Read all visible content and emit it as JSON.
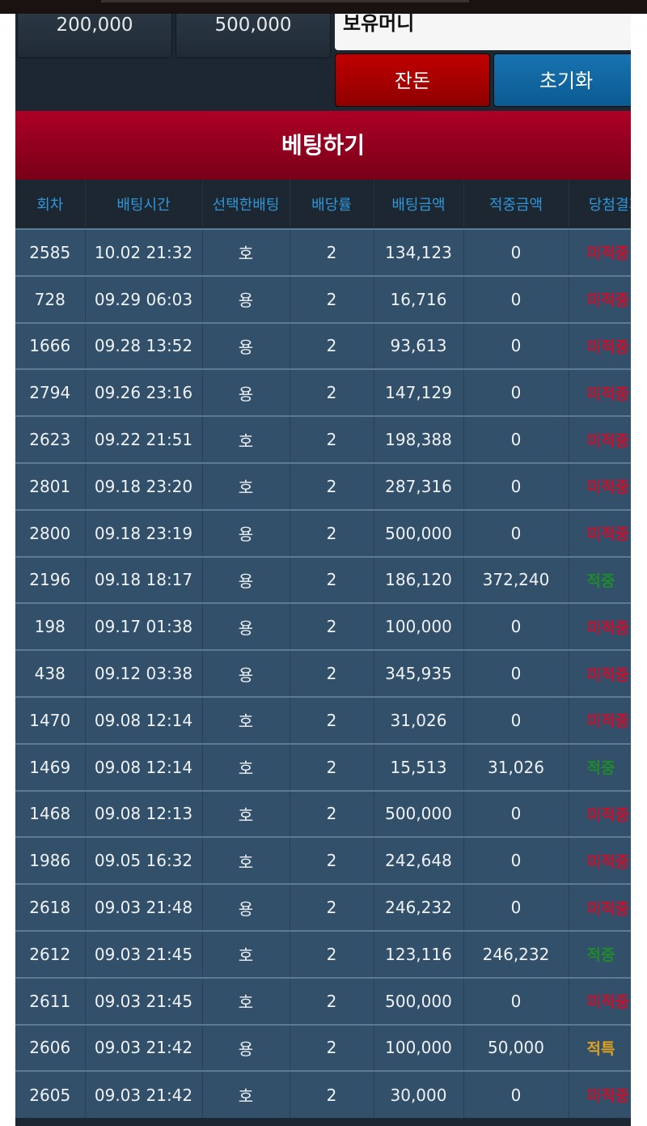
{
  "chips": [
    "200,000",
    "500,000"
  ],
  "money_label": "보유머니",
  "buttons": {
    "balance": "잔돈",
    "reset": "초기화"
  },
  "bet_button": "베팅하기",
  "colors": {
    "win": "#1e8a2a",
    "lose": "#c8102e",
    "special": "#e0a020",
    "header": "#2f97d9"
  },
  "table": {
    "headers": [
      "회차",
      "배팅시간",
      "선택한배팅",
      "배당률",
      "배팅금액",
      "적중금액",
      "당첨결과"
    ],
    "rows": [
      [
        "2585",
        "10.02 21:32",
        "호",
        "2",
        "134,123",
        "0",
        "미적중"
      ],
      [
        "728",
        "09.29 06:03",
        "용",
        "2",
        "16,716",
        "0",
        "미적중"
      ],
      [
        "1666",
        "09.28 13:52",
        "용",
        "2",
        "93,613",
        "0",
        "미적중"
      ],
      [
        "2794",
        "09.26 23:16",
        "용",
        "2",
        "147,129",
        "0",
        "미적중"
      ],
      [
        "2623",
        "09.22 21:51",
        "호",
        "2",
        "198,388",
        "0",
        "미적중"
      ],
      [
        "2801",
        "09.18 23:20",
        "호",
        "2",
        "287,316",
        "0",
        "미적중"
      ],
      [
        "2800",
        "09.18 23:19",
        "용",
        "2",
        "500,000",
        "0",
        "미적중"
      ],
      [
        "2196",
        "09.18 18:17",
        "용",
        "2",
        "186,120",
        "372,240",
        "적중"
      ],
      [
        "198",
        "09.17 01:38",
        "용",
        "2",
        "100,000",
        "0",
        "미적중"
      ],
      [
        "438",
        "09.12 03:38",
        "용",
        "2",
        "345,935",
        "0",
        "미적중"
      ],
      [
        "1470",
        "09.08 12:14",
        "호",
        "2",
        "31,026",
        "0",
        "미적중"
      ],
      [
        "1469",
        "09.08 12:14",
        "호",
        "2",
        "15,513",
        "31,026",
        "적중"
      ],
      [
        "1468",
        "09.08 12:13",
        "호",
        "2",
        "500,000",
        "0",
        "미적중"
      ],
      [
        "1986",
        "09.05 16:32",
        "호",
        "2",
        "242,648",
        "0",
        "미적중"
      ],
      [
        "2618",
        "09.03 21:48",
        "용",
        "2",
        "246,232",
        "0",
        "미적중"
      ],
      [
        "2612",
        "09.03 21:45",
        "호",
        "2",
        "123,116",
        "246,232",
        "적중"
      ],
      [
        "2611",
        "09.03 21:45",
        "호",
        "2",
        "500,000",
        "0",
        "미적중"
      ],
      [
        "2606",
        "09.03 21:42",
        "용",
        "2",
        "100,000",
        "50,000",
        "적특"
      ],
      [
        "2605",
        "09.03 21:42",
        "호",
        "2",
        "30,000",
        "0",
        "미적중"
      ]
    ]
  }
}
